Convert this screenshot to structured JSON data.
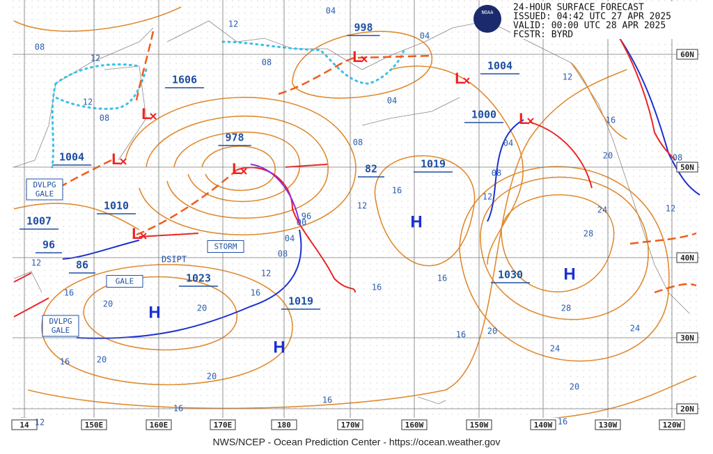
{
  "header": {
    "lines": [
      "24-HOUR SURFACE FORECAST",
      "ISSUED: 04:42 UTC 27 APR 2025",
      "VALID:  00:00 UTC 28 APR 2025",
      "FCSTR:  BYRD"
    ]
  },
  "logo": "NOAA",
  "footer": "NWS/NCEP - Ocean Prediction Center - https://ocean.weather.gov",
  "lon_labels": [
    "14",
    "150E",
    "160E",
    "170E",
    "180",
    "170W",
    "160W",
    "150W",
    "140W",
    "130W",
    "120W"
  ],
  "lat_labels": [
    "60N",
    "50N",
    "40N",
    "30N",
    "20N"
  ],
  "pressure_centers": [
    "998",
    "1606",
    "1004",
    "1000",
    "978",
    "1004",
    "1019",
    "82",
    "1010",
    "1007",
    "96",
    "86",
    "1023",
    "1030",
    "1019"
  ],
  "isobar_labels": [
    "04",
    "12",
    "04",
    "08",
    "12",
    "08",
    "12",
    "08",
    "04",
    "12",
    "04",
    "08",
    "16",
    "20",
    "08",
    "08",
    "16",
    "12",
    "12",
    "96",
    "00",
    "24",
    "12",
    "04",
    "08",
    "28",
    "12",
    "16",
    "16",
    "16",
    "20",
    "20",
    "16",
    "28",
    "12",
    "16",
    "20",
    "24",
    "24",
    "16",
    "20",
    "20",
    "20",
    "16",
    "16",
    "16",
    "12"
  ],
  "highs": [
    "H",
    "H",
    "H",
    "H"
  ],
  "lows": [
    "L",
    "L",
    "L",
    "L",
    "L",
    "L",
    "L"
  ],
  "warnings": [
    [
      "DVLPG",
      "GALE"
    ],
    [
      "STORM"
    ],
    [
      "GALE"
    ],
    [
      "DVLPG",
      "GALE"
    ]
  ],
  "front_note": "DSIPT"
}
